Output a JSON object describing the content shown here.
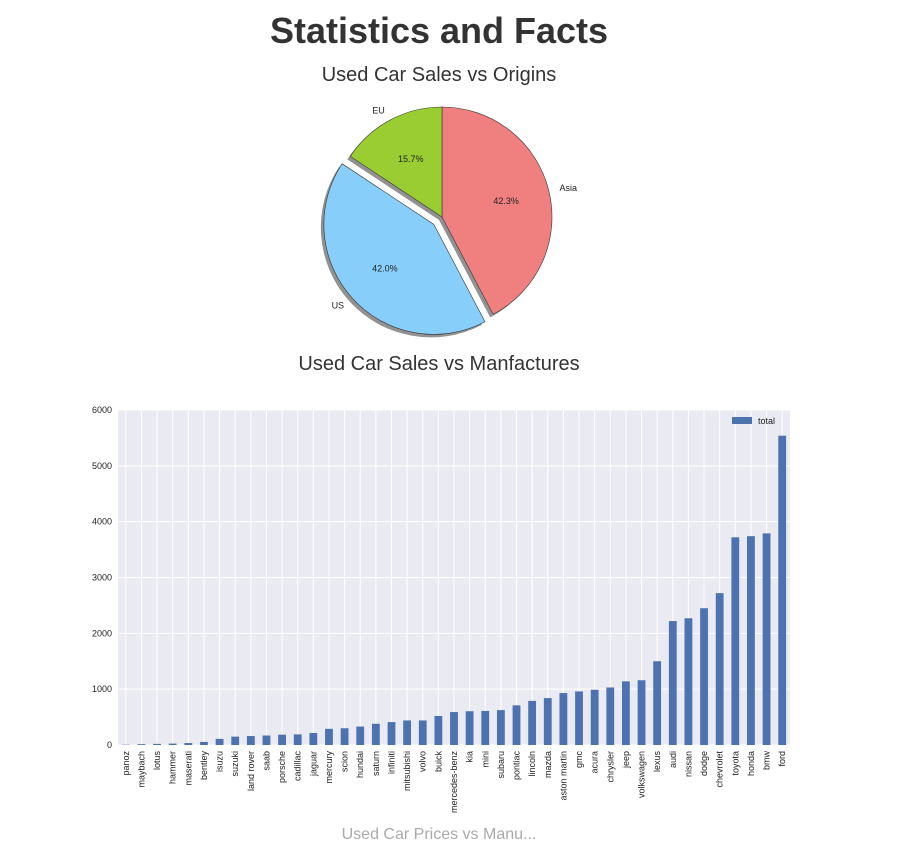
{
  "page": {
    "title": "Statistics and Facts",
    "cut_off_title": "Used Car Prices vs Manu..."
  },
  "chart_data": [
    {
      "type": "pie",
      "title": "Used Car Sales vs Origins",
      "slices": [
        {
          "label": "Asia",
          "percent": 42.3,
          "pct_label": "42.3%",
          "color": "#f08080",
          "explode": false
        },
        {
          "label": "US",
          "percent": 42.0,
          "pct_label": "42.0%",
          "color": "#87cefa",
          "explode": true
        },
        {
          "label": "EU",
          "percent": 15.7,
          "pct_label": "15.7%",
          "color": "#9acd32",
          "explode": false
        }
      ],
      "shadow": true
    },
    {
      "type": "bar",
      "title": "Used Car Sales vs Manfactures",
      "categories": [
        "panoz",
        "maybach",
        "lotus",
        "hammer",
        "maserati",
        "bentley",
        "isuzu",
        "suzuki",
        "land rover",
        "saab",
        "porsche",
        "cadillac",
        "jaguar",
        "mercury",
        "scion",
        "hundai",
        "saturn",
        "infiniti",
        "mitsubishi",
        "volvo",
        "buick",
        "mercedes-benz",
        "kia",
        "mini",
        "subaru",
        "pontiac",
        "lincoln",
        "mazda",
        "aston martin",
        "gmc",
        "acura",
        "chrysler",
        "jeep",
        "volkswagen",
        "lexus",
        "audi",
        "nissan",
        "dodge",
        "chevrolet",
        "toyota",
        "honda",
        "bmw",
        "ford"
      ],
      "series": [
        {
          "name": "total",
          "color": "#4c72b0",
          "values": [
            5,
            15,
            20,
            25,
            35,
            55,
            110,
            150,
            160,
            170,
            185,
            190,
            215,
            290,
            300,
            330,
            380,
            410,
            440,
            440,
            520,
            590,
            605,
            610,
            625,
            710,
            790,
            840,
            930,
            960,
            990,
            1030,
            1140,
            1160,
            1500,
            2220,
            2270,
            2450,
            2720,
            3720,
            3740,
            3790,
            5540
          ]
        }
      ],
      "yticks": [
        0,
        1000,
        2000,
        3000,
        4000,
        5000,
        6000
      ],
      "ylim": [
        0,
        6000
      ],
      "grid": true,
      "legend_position": "top-right",
      "background": "#eaeaf2"
    }
  ]
}
